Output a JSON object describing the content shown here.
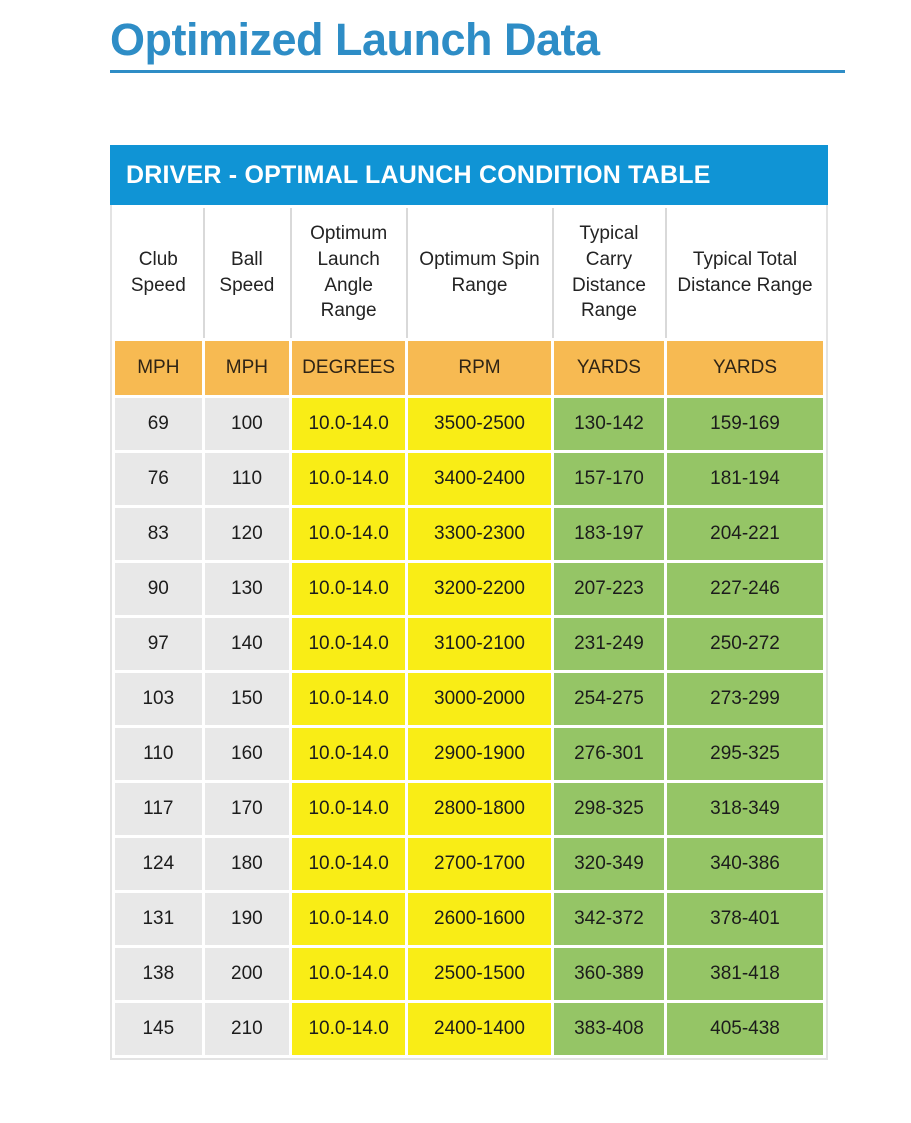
{
  "page": {
    "title": "Optimized Launch Data"
  },
  "colors": {
    "title_blue": "#2e8dc6",
    "banner_blue": "#1094d5",
    "unit_orange": "#f7ba52",
    "speed_gray": "#e8e8e8",
    "launch_yellow": "#f9ed16",
    "distance_green": "#95c566"
  },
  "table": {
    "title": "DRIVER - OPTIMAL LAUNCH CONDITION TABLE",
    "columns": [
      {
        "label": "Club Speed",
        "unit": "MPH"
      },
      {
        "label": "Ball Speed",
        "unit": "MPH"
      },
      {
        "label": "Optimum Launch Angle Range",
        "unit": "DEGREES"
      },
      {
        "label": "Optimum Spin Range",
        "unit": "RPM"
      },
      {
        "label": "Typical Carry Distance Range",
        "unit": "YARDS"
      },
      {
        "label": "Typical Total Distance Range",
        "unit": "YARDS"
      }
    ],
    "rows": [
      [
        "69",
        "100",
        "10.0-14.0",
        "3500-2500",
        "130-142",
        "159-169"
      ],
      [
        "76",
        "110",
        "10.0-14.0",
        "3400-2400",
        "157-170",
        "181-194"
      ],
      [
        "83",
        "120",
        "10.0-14.0",
        "3300-2300",
        "183-197",
        "204-221"
      ],
      [
        "90",
        "130",
        "10.0-14.0",
        "3200-2200",
        "207-223",
        "227-246"
      ],
      [
        "97",
        "140",
        "10.0-14.0",
        "3100-2100",
        "231-249",
        "250-272"
      ],
      [
        "103",
        "150",
        "10.0-14.0",
        "3000-2000",
        "254-275",
        "273-299"
      ],
      [
        "110",
        "160",
        "10.0-14.0",
        "2900-1900",
        "276-301",
        "295-325"
      ],
      [
        "117",
        "170",
        "10.0-14.0",
        "2800-1800",
        "298-325",
        "318-349"
      ],
      [
        "124",
        "180",
        "10.0-14.0",
        "2700-1700",
        "320-349",
        "340-386"
      ],
      [
        "131",
        "190",
        "10.0-14.0",
        "2600-1600",
        "342-372",
        "378-401"
      ],
      [
        "138",
        "200",
        "10.0-14.0",
        "2500-1500",
        "360-389",
        "381-418"
      ],
      [
        "145",
        "210",
        "10.0-14.0",
        "2400-1400",
        "383-408",
        "405-438"
      ]
    ]
  }
}
